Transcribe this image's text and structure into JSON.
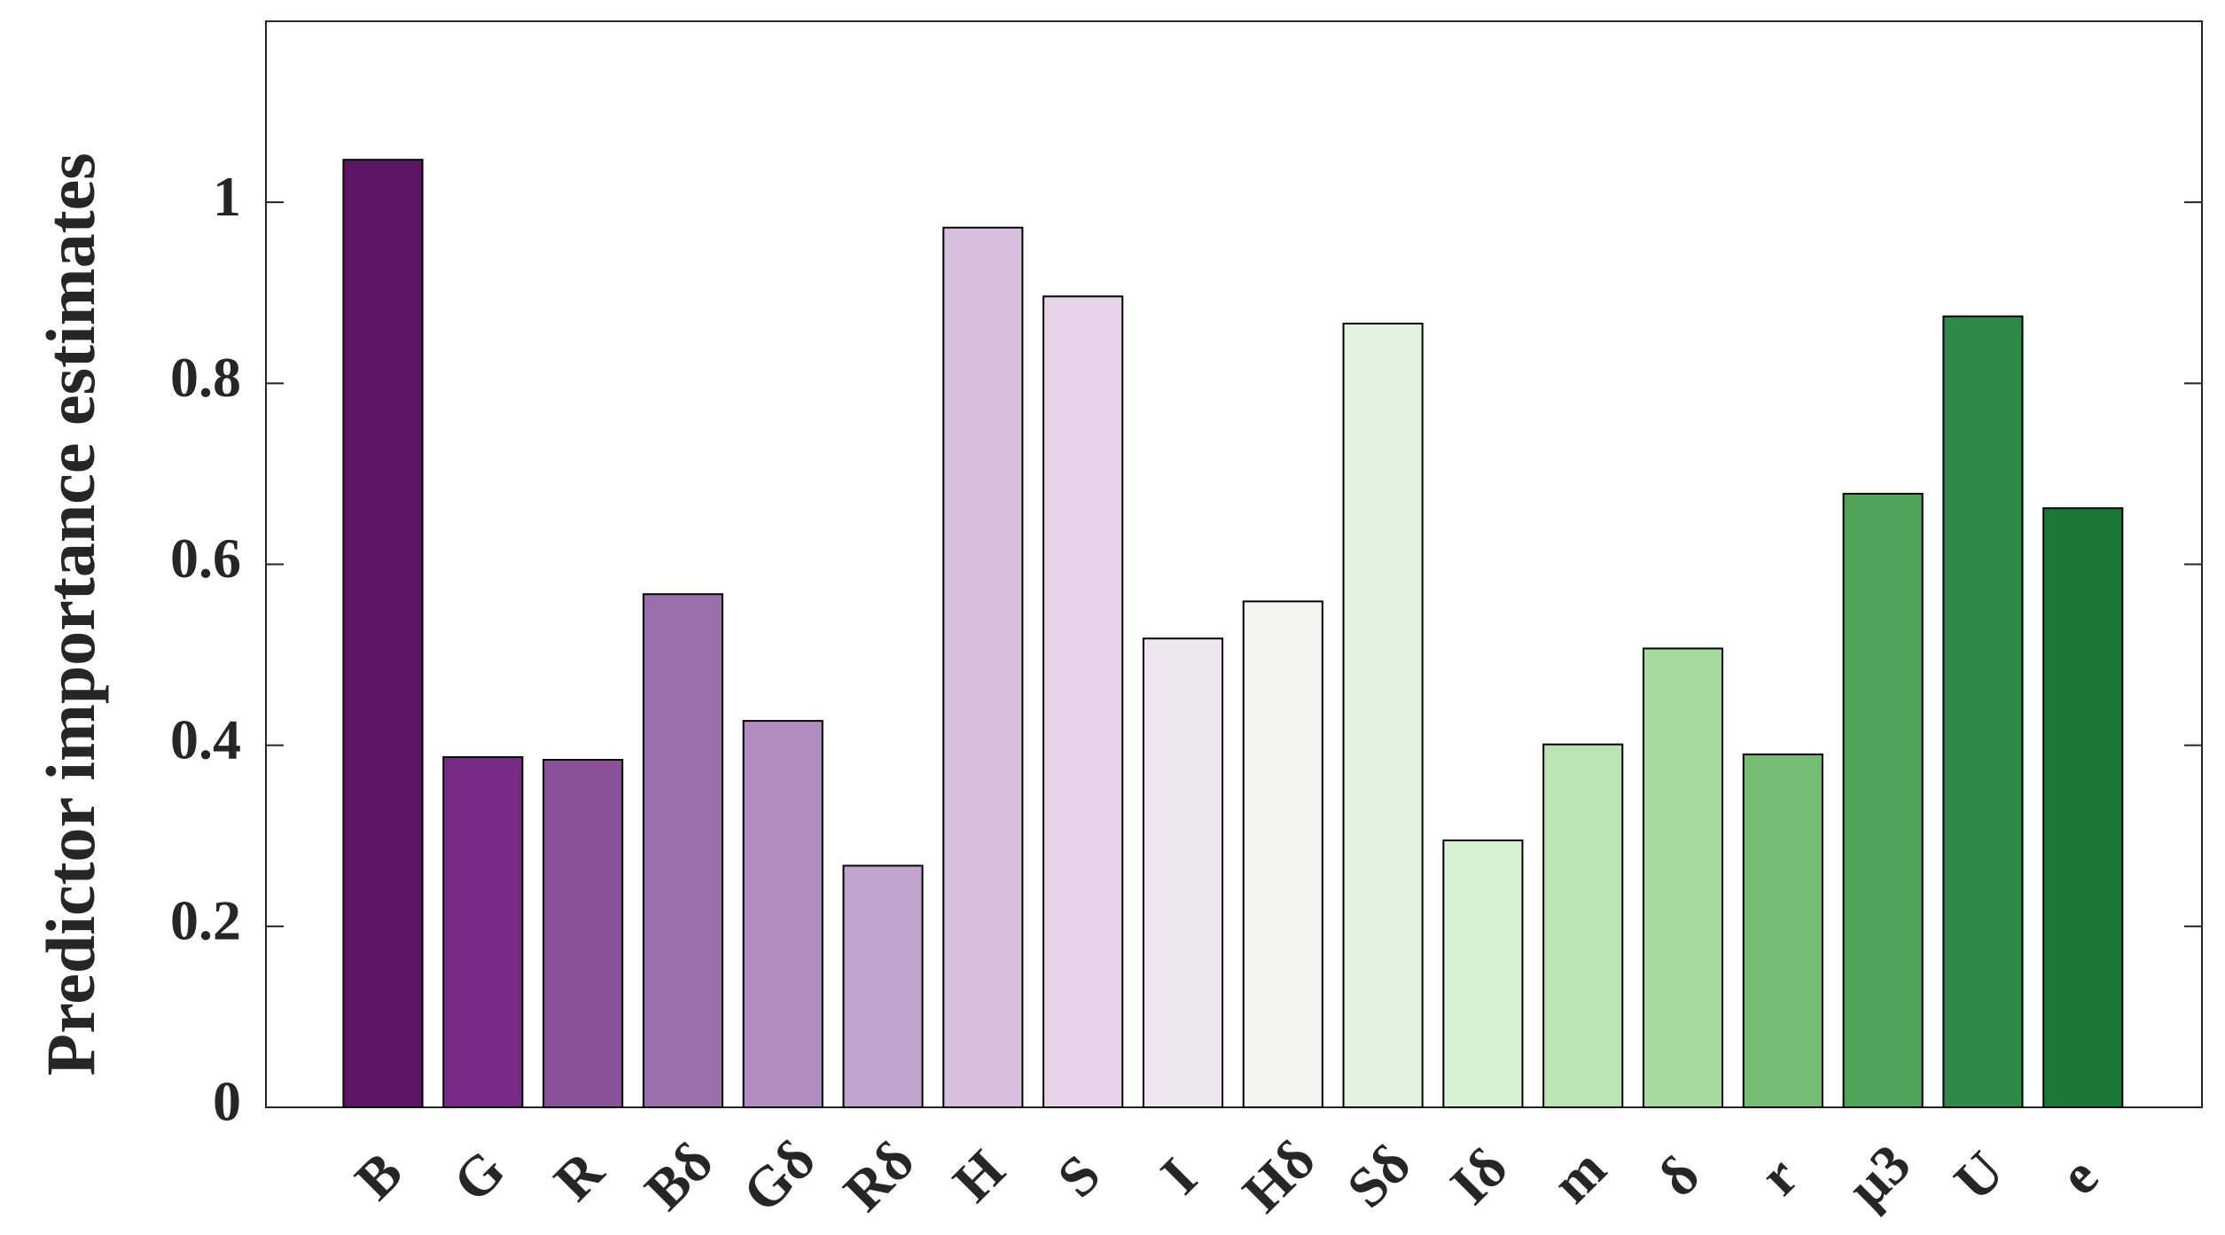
{
  "chart_data": {
    "type": "bar",
    "y_label": "Predictor importance estimates",
    "categories": [
      "B",
      "G",
      "R",
      "Bδ",
      "Gδ",
      "Rδ",
      "H",
      "S",
      "I",
      "Hδ",
      "Sδ",
      "Iδ",
      "m",
      "δ",
      "r",
      "μ3",
      "U",
      "e"
    ],
    "values": [
      1.047,
      0.387,
      0.384,
      0.567,
      0.427,
      0.267,
      0.972,
      0.896,
      0.518,
      0.559,
      0.866,
      0.295,
      0.401,
      0.507,
      0.39,
      0.678,
      0.874,
      0.662
    ],
    "colors": [
      "#5c1463",
      "#762a83",
      "#8a5199",
      "#9970ab",
      "#b18cc0",
      "#c2a5cf",
      "#d8bfe0",
      "#e7d4e8",
      "#efe5f0",
      "#f3f4f2",
      "#e4f3df",
      "#d9f0d3",
      "#bbe4b2",
      "#a6dba0",
      "#75bc74",
      "#51a35a",
      "#2f8a47",
      "#1b7837"
    ],
    "ylim": [
      0,
      1.2
    ],
    "yticks": [
      0,
      0.2,
      0.4,
      0.6,
      0.8,
      1
    ],
    "grid": false
  }
}
